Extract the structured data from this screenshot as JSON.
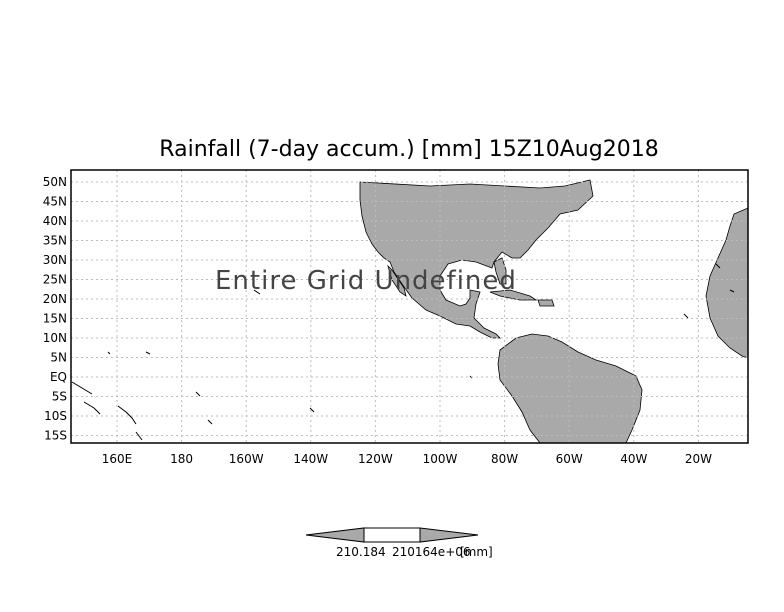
{
  "map": {
    "title": "Rainfall (7-day accum.) [mm] 15Z10Aug2018",
    "overlay_text": "Entire Grid Undefined",
    "lat_ticks": [
      "50N",
      "45N",
      "40N",
      "35N",
      "30N",
      "25N",
      "20N",
      "15N",
      "10N",
      "5N",
      "EQ",
      "5S",
      "10S",
      "15S"
    ],
    "lon_ticks": [
      "160E",
      "180",
      "160W",
      "140W",
      "120W",
      "100W",
      "80W",
      "60W",
      "40W",
      "20W"
    ],
    "land_color": "#a9a9a9",
    "grid_style": "dotted"
  },
  "colorbar": {
    "label_min": "210.184",
    "label_max": "210164e+06",
    "units": "[mm]",
    "fill_color": "#a9a9a9"
  }
}
